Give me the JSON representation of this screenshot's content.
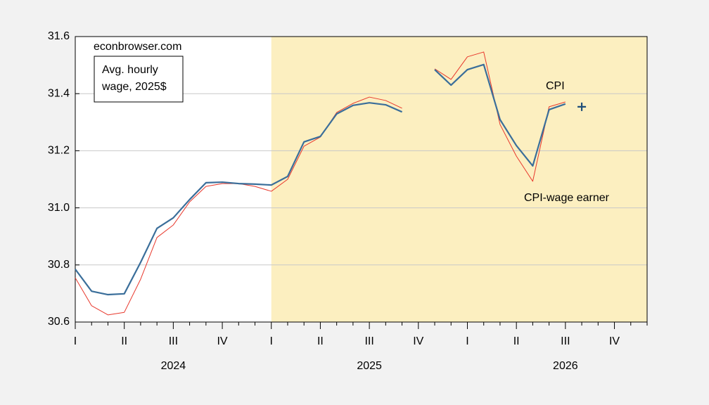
{
  "chart_data": {
    "type": "line",
    "source_note": "econbrowser.com",
    "legend_box": [
      "Avg. hourly",
      "wage, 2025$"
    ],
    "categories": [
      "I",
      null,
      null,
      "II",
      null,
      null,
      "III",
      null,
      null,
      "IV",
      null,
      null,
      "I",
      null,
      null,
      "II",
      null,
      null,
      "III",
      null,
      null,
      "IV",
      null,
      null,
      "I",
      null,
      null,
      "II",
      null,
      null,
      "III",
      null,
      null,
      "IV",
      null,
      null
    ],
    "year_labels": [
      "2024",
      "2025",
      "2026"
    ],
    "shade": {
      "start": 12,
      "end": 35,
      "color": "#fcefc0"
    },
    "series": [
      {
        "name": "CPI",
        "color": "#3a6e9a",
        "width": 2.2,
        "values": [
          30.785,
          30.708,
          30.696,
          30.699,
          30.809,
          30.928,
          30.965,
          31.029,
          31.088,
          31.09,
          31.085,
          31.083,
          31.08,
          31.11,
          31.231,
          31.25,
          31.329,
          31.359,
          31.368,
          31.361,
          31.336,
          null,
          31.484,
          31.43,
          31.484,
          31.502,
          31.309,
          31.218,
          31.147,
          31.344,
          31.364,
          null,
          null,
          null,
          null,
          null
        ]
      },
      {
        "name": "CPI-wage earner",
        "color": "#e8382c",
        "label_color": "#c00000",
        "width": 1,
        "values": [
          30.755,
          30.657,
          30.625,
          30.634,
          30.75,
          30.896,
          30.94,
          31.021,
          31.075,
          31.085,
          31.085,
          31.075,
          31.058,
          31.1,
          31.216,
          31.248,
          31.334,
          31.366,
          31.388,
          31.376,
          31.349,
          null,
          31.487,
          31.45,
          31.529,
          31.546,
          31.292,
          31.181,
          31.093,
          31.354,
          31.371,
          null,
          null,
          null,
          null,
          null
        ]
      },
      {
        "color": "#1f4e79",
        "marker": "plus",
        "values": [
          null,
          null,
          null,
          null,
          null,
          null,
          null,
          null,
          null,
          null,
          null,
          null,
          null,
          null,
          null,
          null,
          null,
          null,
          null,
          null,
          null,
          null,
          null,
          null,
          null,
          null,
          null,
          null,
          null,
          null,
          null,
          31.354,
          null,
          null,
          null,
          null
        ]
      }
    ],
    "ylim": [
      30.6,
      31.6
    ],
    "yticks": [
      30.6,
      30.8,
      {
        "value": 31.0,
        "label": "31.0"
      },
      31.2,
      31.4,
      31.6
    ],
    "grid": true
  }
}
